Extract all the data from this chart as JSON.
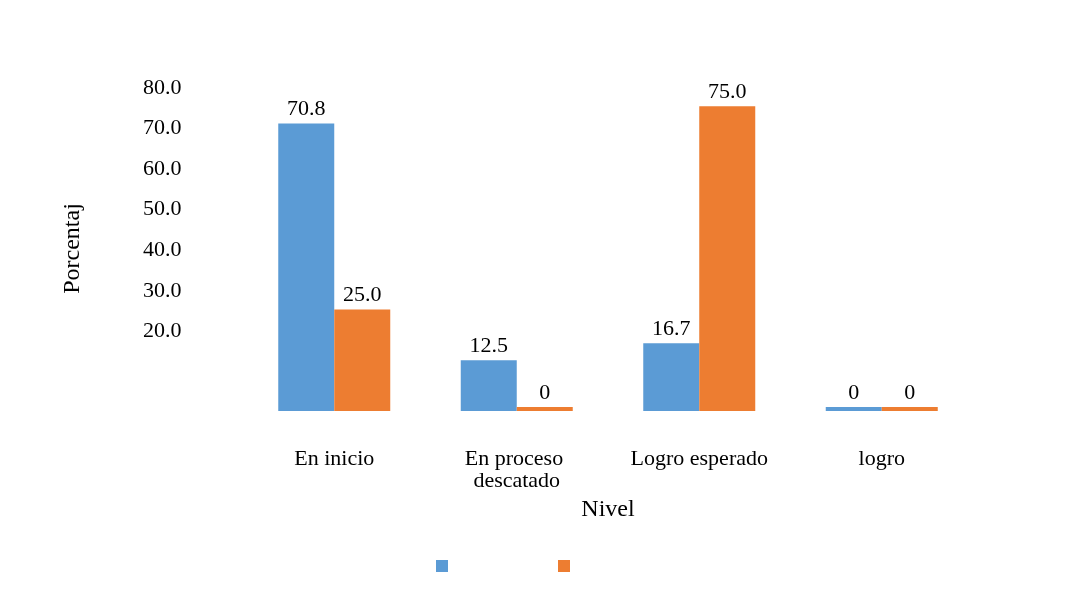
{
  "chart_data": {
    "type": "bar",
    "xlabel": "Nivel",
    "ylabel": "Porcentaj",
    "categories": [
      "En inicio",
      "En proceso descatado",
      "Logro esperado",
      "logro"
    ],
    "series": [
      {
        "color": "#5b9bd5",
        "values": [
          70.8,
          12.5,
          16.7,
          0
        ],
        "value_labels": [
          "70.8",
          "12.5",
          "16.7",
          "0"
        ]
      },
      {
        "color": "#ed7d31",
        "values": [
          25.0,
          0,
          75.0,
          0
        ],
        "value_labels": [
          "25.0",
          "0",
          "75.0",
          "0"
        ]
      }
    ],
    "ylim": [
      0,
      80
    ],
    "yticks": [
      {
        "value": 20,
        "label": "20.0"
      },
      {
        "value": 30,
        "label": "30.0"
      },
      {
        "value": 40,
        "label": "40.0"
      },
      {
        "value": 50,
        "label": "50.0"
      },
      {
        "value": 60,
        "label": "60.0"
      },
      {
        "value": 70,
        "label": "70.0"
      },
      {
        "value": 80,
        "label": "80.0"
      }
    ],
    "grid": false
  }
}
